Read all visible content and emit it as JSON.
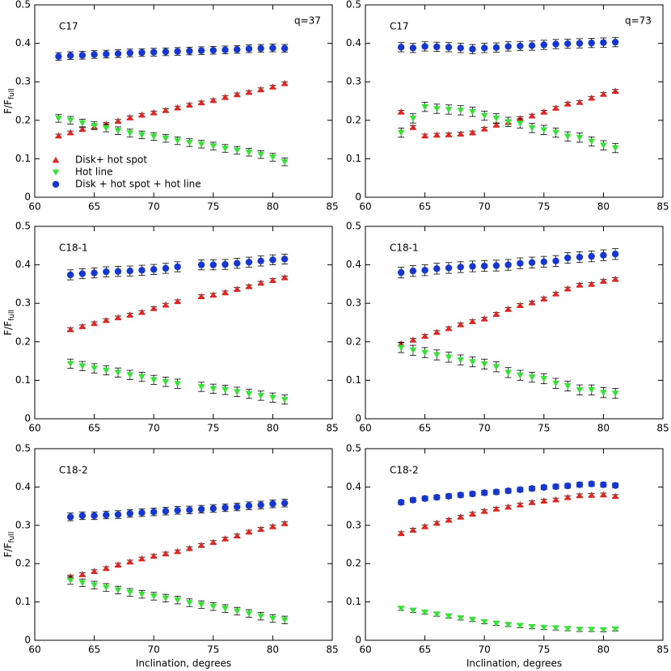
{
  "chart_data": [
    {
      "type": "scatter",
      "label": "C17",
      "annotation": "q=37",
      "ylabel": "F/F",
      "ylabel_sub": "full",
      "xlim": [
        60,
        85
      ],
      "xticks": [
        60,
        65,
        70,
        75,
        80,
        85
      ],
      "ylim": [
        0,
        0.5
      ],
      "yticks": [
        0,
        0.1,
        0.2,
        0.3,
        0.4,
        0.5
      ],
      "legend": "lower left",
      "x": [
        62,
        63,
        64,
        65,
        66,
        67,
        68,
        69,
        70,
        71,
        72,
        73,
        74,
        75,
        76,
        77,
        78,
        79,
        80,
        81
      ],
      "series": [
        {
          "name": "Disk+ hot spot",
          "color": "#e8231f",
          "marker": "^",
          "values": [
            0.16,
            0.168,
            0.177,
            0.183,
            0.19,
            0.198,
            0.207,
            0.214,
            0.22,
            0.226,
            0.233,
            0.24,
            0.246,
            0.252,
            0.26,
            0.267,
            0.273,
            0.28,
            0.287,
            0.296
          ],
          "errors": [
            0.004,
            0.004,
            0.004,
            0.004,
            0.004,
            0.004,
            0.004,
            0.004,
            0.004,
            0.004,
            0.004,
            0.004,
            0.004,
            0.004,
            0.004,
            0.004,
            0.004,
            0.004,
            0.004,
            0.004
          ]
        },
        {
          "name": "Hot line",
          "color": "#2ee62e",
          "marker": "v",
          "values": [
            0.205,
            0.2,
            0.193,
            0.186,
            0.18,
            0.173,
            0.167,
            0.162,
            0.158,
            0.153,
            0.147,
            0.142,
            0.138,
            0.133,
            0.127,
            0.122,
            0.117,
            0.111,
            0.104,
            0.092
          ],
          "errors": [
            0.01,
            0.01,
            0.01,
            0.01,
            0.01,
            0.01,
            0.01,
            0.01,
            0.01,
            0.01,
            0.01,
            0.01,
            0.01,
            0.01,
            0.01,
            0.01,
            0.01,
            0.01,
            0.01,
            0.01
          ]
        },
        {
          "name": "Disk + hot spot + hot line",
          "color": "#1536d6",
          "marker": "o",
          "values": [
            0.366,
            0.368,
            0.369,
            0.371,
            0.372,
            0.373,
            0.375,
            0.376,
            0.377,
            0.378,
            0.379,
            0.38,
            0.381,
            0.382,
            0.383,
            0.384,
            0.386,
            0.387,
            0.388,
            0.387
          ],
          "errors": [
            0.01,
            0.01,
            0.01,
            0.01,
            0.01,
            0.01,
            0.01,
            0.01,
            0.01,
            0.01,
            0.01,
            0.01,
            0.01,
            0.01,
            0.01,
            0.01,
            0.01,
            0.01,
            0.01,
            0.01
          ]
        }
      ]
    },
    {
      "type": "scatter",
      "label": "C17",
      "annotation": "q=73",
      "xlim": [
        60,
        85
      ],
      "xticks": [
        60,
        65,
        70,
        75,
        80,
        85
      ],
      "ylim": [
        0,
        0.5
      ],
      "yticks": [
        0,
        0.1,
        0.2,
        0.3,
        0.4,
        0.5
      ],
      "x": [
        63,
        64,
        65,
        66,
        67,
        68,
        69,
        70,
        71,
        72,
        73,
        74,
        75,
        76,
        77,
        78,
        79,
        80,
        81
      ],
      "series": [
        {
          "color": "#e8231f",
          "marker": "^",
          "values": [
            0.222,
            0.182,
            0.16,
            0.162,
            0.163,
            0.165,
            0.168,
            0.178,
            0.188,
            0.195,
            0.205,
            0.212,
            0.222,
            0.232,
            0.243,
            0.247,
            0.258,
            0.268,
            0.276
          ],
          "errors": [
            0.004,
            0.004,
            0.004,
            0.004,
            0.004,
            0.004,
            0.004,
            0.004,
            0.004,
            0.004,
            0.004,
            0.004,
            0.004,
            0.004,
            0.004,
            0.004,
            0.004,
            0.004,
            0.004
          ]
        },
        {
          "color": "#2ee62e",
          "marker": "v",
          "values": [
            0.168,
            0.205,
            0.235,
            0.23,
            0.228,
            0.226,
            0.222,
            0.212,
            0.205,
            0.196,
            0.192,
            0.18,
            0.175,
            0.168,
            0.158,
            0.155,
            0.145,
            0.135,
            0.128
          ],
          "errors": [
            0.012,
            0.012,
            0.012,
            0.012,
            0.012,
            0.012,
            0.012,
            0.012,
            0.012,
            0.012,
            0.012,
            0.012,
            0.012,
            0.012,
            0.012,
            0.012,
            0.012,
            0.012,
            0.012
          ]
        },
        {
          "color": "#1536d6",
          "marker": "o",
          "values": [
            0.39,
            0.388,
            0.392,
            0.391,
            0.39,
            0.388,
            0.385,
            0.388,
            0.389,
            0.392,
            0.393,
            0.394,
            0.396,
            0.398,
            0.399,
            0.4,
            0.401,
            0.402,
            0.403
          ],
          "errors": [
            0.012,
            0.012,
            0.012,
            0.012,
            0.012,
            0.012,
            0.012,
            0.012,
            0.012,
            0.012,
            0.012,
            0.012,
            0.012,
            0.012,
            0.012,
            0.012,
            0.012,
            0.012,
            0.012
          ]
        }
      ]
    },
    {
      "type": "scatter",
      "label": "C18-1",
      "ylabel": "F/F",
      "ylabel_sub": "full",
      "xlim": [
        60,
        85
      ],
      "xticks": [
        60,
        65,
        70,
        75,
        80,
        85
      ],
      "ylim": [
        0,
        0.5
      ],
      "yticks": [
        0,
        0.1,
        0.2,
        0.3,
        0.4,
        0.5
      ],
      "x": [
        63,
        64,
        65,
        66,
        67,
        68,
        69,
        70,
        71,
        72,
        74,
        75,
        76,
        77,
        78,
        79,
        80,
        81
      ],
      "series": [
        {
          "color": "#e8231f",
          "marker": "^",
          "values": [
            0.232,
            0.24,
            0.248,
            0.256,
            0.263,
            0.27,
            0.277,
            0.287,
            0.296,
            0.305,
            0.318,
            0.322,
            0.328,
            0.337,
            0.344,
            0.353,
            0.36,
            0.367
          ],
          "errors": [
            0.004,
            0.004,
            0.004,
            0.004,
            0.004,
            0.004,
            0.004,
            0.004,
            0.004,
            0.004,
            0.004,
            0.004,
            0.004,
            0.004,
            0.004,
            0.004,
            0.004,
            0.004
          ]
        },
        {
          "color": "#2ee62e",
          "marker": "v",
          "values": [
            0.143,
            0.137,
            0.131,
            0.126,
            0.12,
            0.114,
            0.109,
            0.101,
            0.096,
            0.091,
            0.083,
            0.078,
            0.075,
            0.07,
            0.065,
            0.06,
            0.055,
            0.05
          ],
          "errors": [
            0.012,
            0.012,
            0.012,
            0.012,
            0.012,
            0.012,
            0.012,
            0.012,
            0.012,
            0.012,
            0.012,
            0.012,
            0.012,
            0.012,
            0.012,
            0.012,
            0.012,
            0.012
          ]
        },
        {
          "color": "#1536d6",
          "marker": "o",
          "values": [
            0.374,
            0.377,
            0.379,
            0.382,
            0.383,
            0.384,
            0.386,
            0.388,
            0.391,
            0.395,
            0.4,
            0.4,
            0.401,
            0.404,
            0.407,
            0.41,
            0.413,
            0.415
          ],
          "errors": [
            0.013,
            0.013,
            0.013,
            0.013,
            0.013,
            0.013,
            0.013,
            0.013,
            0.013,
            0.013,
            0.013,
            0.013,
            0.013,
            0.013,
            0.013,
            0.013,
            0.013,
            0.013
          ]
        }
      ]
    },
    {
      "type": "scatter",
      "label": "C18-1",
      "xlim": [
        60,
        85
      ],
      "xticks": [
        60,
        65,
        70,
        75,
        80,
        85
      ],
      "ylim": [
        0,
        0.5
      ],
      "yticks": [
        0,
        0.1,
        0.2,
        0.3,
        0.4,
        0.5
      ],
      "x": [
        63,
        64,
        65,
        66,
        67,
        68,
        69,
        70,
        71,
        72,
        73,
        74,
        75,
        76,
        77,
        78,
        79,
        80,
        81
      ],
      "series": [
        {
          "color": "#e8231f",
          "marker": "^",
          "values": [
            0.195,
            0.205,
            0.215,
            0.225,
            0.235,
            0.245,
            0.253,
            0.26,
            0.272,
            0.285,
            0.295,
            0.302,
            0.312,
            0.325,
            0.338,
            0.348,
            0.35,
            0.358,
            0.363
          ],
          "errors": [
            0.004,
            0.004,
            0.004,
            0.004,
            0.004,
            0.004,
            0.004,
            0.004,
            0.004,
            0.004,
            0.004,
            0.004,
            0.004,
            0.004,
            0.004,
            0.004,
            0.004,
            0.004,
            0.004
          ]
        },
        {
          "color": "#2ee62e",
          "marker": "v",
          "values": [
            0.185,
            0.178,
            0.172,
            0.166,
            0.16,
            0.153,
            0.148,
            0.142,
            0.135,
            0.12,
            0.113,
            0.108,
            0.104,
            0.092,
            0.085,
            0.075,
            0.075,
            0.068,
            0.066
          ],
          "errors": [
            0.013,
            0.013,
            0.013,
            0.013,
            0.013,
            0.013,
            0.013,
            0.013,
            0.013,
            0.013,
            0.013,
            0.013,
            0.013,
            0.013,
            0.013,
            0.013,
            0.013,
            0.013,
            0.013
          ]
        },
        {
          "color": "#1536d6",
          "marker": "o",
          "values": [
            0.38,
            0.384,
            0.386,
            0.39,
            0.392,
            0.394,
            0.396,
            0.397,
            0.398,
            0.4,
            0.404,
            0.406,
            0.408,
            0.41,
            0.418,
            0.42,
            0.422,
            0.425,
            0.428
          ],
          "errors": [
            0.014,
            0.014,
            0.014,
            0.014,
            0.014,
            0.014,
            0.014,
            0.014,
            0.014,
            0.014,
            0.014,
            0.014,
            0.014,
            0.014,
            0.014,
            0.014,
            0.014,
            0.014,
            0.014
          ]
        }
      ]
    },
    {
      "type": "scatter",
      "label": "C18-2",
      "ylabel": "F/F",
      "ylabel_sub": "full",
      "xlabel": "Inclination, degrees",
      "xlim": [
        60,
        85
      ],
      "xticks": [
        60,
        65,
        70,
        75,
        80,
        85
      ],
      "ylim": [
        0,
        0.5
      ],
      "yticks": [
        0,
        0.1,
        0.2,
        0.3,
        0.4,
        0.5
      ],
      "x": [
        63,
        64,
        65,
        66,
        67,
        68,
        69,
        70,
        71,
        72,
        73,
        74,
        75,
        76,
        77,
        78,
        79,
        80,
        81
      ],
      "series": [
        {
          "color": "#e8231f",
          "marker": "^",
          "values": [
            0.166,
            0.172,
            0.18,
            0.188,
            0.197,
            0.205,
            0.213,
            0.22,
            0.226,
            0.232,
            0.24,
            0.248,
            0.256,
            0.265,
            0.273,
            0.283,
            0.29,
            0.297,
            0.305
          ],
          "errors": [
            0.004,
            0.004,
            0.004,
            0.004,
            0.004,
            0.004,
            0.004,
            0.004,
            0.004,
            0.004,
            0.004,
            0.004,
            0.004,
            0.004,
            0.004,
            0.004,
            0.004,
            0.004,
            0.004
          ]
        },
        {
          "color": "#2ee62e",
          "marker": "v",
          "values": [
            0.156,
            0.15,
            0.144,
            0.138,
            0.131,
            0.125,
            0.12,
            0.115,
            0.11,
            0.105,
            0.098,
            0.093,
            0.088,
            0.083,
            0.076,
            0.07,
            0.063,
            0.057,
            0.053
          ],
          "errors": [
            0.01,
            0.01,
            0.01,
            0.01,
            0.01,
            0.01,
            0.01,
            0.01,
            0.01,
            0.01,
            0.01,
            0.01,
            0.01,
            0.01,
            0.01,
            0.01,
            0.01,
            0.01,
            0.01
          ]
        },
        {
          "color": "#1536d6",
          "marker": "o",
          "values": [
            0.322,
            0.325,
            0.325,
            0.327,
            0.328,
            0.331,
            0.333,
            0.335,
            0.337,
            0.339,
            0.34,
            0.342,
            0.344,
            0.346,
            0.348,
            0.351,
            0.353,
            0.356,
            0.358
          ],
          "errors": [
            0.01,
            0.01,
            0.01,
            0.01,
            0.01,
            0.01,
            0.01,
            0.01,
            0.01,
            0.01,
            0.01,
            0.01,
            0.01,
            0.01,
            0.01,
            0.01,
            0.01,
            0.01,
            0.01
          ]
        }
      ]
    },
    {
      "type": "scatter",
      "label": "C18-2",
      "xlabel": "Inclination, degrees",
      "xlim": [
        60,
        85
      ],
      "xticks": [
        60,
        65,
        70,
        75,
        80,
        85
      ],
      "ylim": [
        0,
        0.5
      ],
      "yticks": [
        0,
        0.1,
        0.2,
        0.3,
        0.4,
        0.5
      ],
      "x": [
        63,
        64,
        65,
        66,
        67,
        68,
        69,
        70,
        71,
        72,
        73,
        74,
        75,
        76,
        77,
        78,
        79,
        80,
        81
      ],
      "series": [
        {
          "color": "#e8231f",
          "marker": "^",
          "values": [
            0.279,
            0.288,
            0.297,
            0.306,
            0.314,
            0.322,
            0.33,
            0.337,
            0.343,
            0.348,
            0.354,
            0.36,
            0.364,
            0.367,
            0.373,
            0.378,
            0.379,
            0.38,
            0.376
          ],
          "errors": [
            0.004,
            0.004,
            0.004,
            0.004,
            0.004,
            0.004,
            0.004,
            0.004,
            0.004,
            0.004,
            0.004,
            0.004,
            0.004,
            0.004,
            0.004,
            0.004,
            0.004,
            0.004,
            0.004
          ]
        },
        {
          "color": "#2ee62e",
          "marker": "v",
          "values": [
            0.083,
            0.078,
            0.073,
            0.068,
            0.063,
            0.058,
            0.054,
            0.048,
            0.044,
            0.041,
            0.038,
            0.035,
            0.033,
            0.032,
            0.03,
            0.028,
            0.028,
            0.027,
            0.029
          ],
          "errors": [
            0.005,
            0.005,
            0.005,
            0.005,
            0.005,
            0.005,
            0.005,
            0.005,
            0.005,
            0.005,
            0.005,
            0.005,
            0.005,
            0.005,
            0.005,
            0.005,
            0.005,
            0.005,
            0.005
          ]
        },
        {
          "color": "#1536d6",
          "marker": "o",
          "values": [
            0.36,
            0.366,
            0.37,
            0.373,
            0.376,
            0.379,
            0.382,
            0.385,
            0.387,
            0.39,
            0.393,
            0.396,
            0.399,
            0.401,
            0.403,
            0.406,
            0.408,
            0.406,
            0.404
          ],
          "errors": [
            0.006,
            0.006,
            0.006,
            0.006,
            0.006,
            0.006,
            0.006,
            0.006,
            0.006,
            0.006,
            0.006,
            0.006,
            0.006,
            0.006,
            0.006,
            0.006,
            0.006,
            0.006,
            0.006
          ]
        }
      ]
    }
  ]
}
